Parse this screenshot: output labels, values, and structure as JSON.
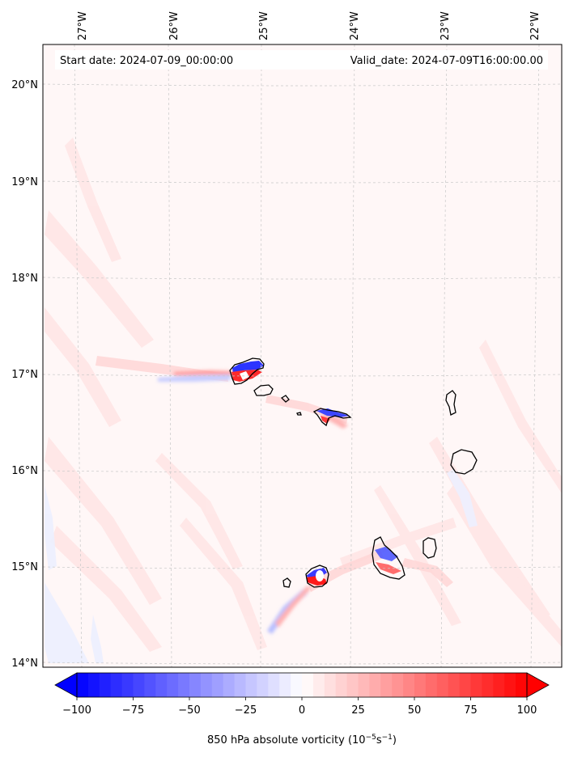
{
  "header": {
    "start_date": "Start date: 2024-07-09_00:00:00",
    "valid_date": "Valid_date: 2024-07-09T16:00:00.00"
  },
  "map": {
    "lon_labels": [
      "27°W",
      "26°W",
      "25°W",
      "24°W",
      "23°W",
      "22°W"
    ],
    "lat_labels": [
      "20°N",
      "19°N",
      "18°N",
      "17°N",
      "16°N",
      "15°N",
      "14°N"
    ],
    "gridlines": "dashed"
  },
  "colorbar": {
    "tick_labels": [
      "−100",
      "−75",
      "−50",
      "−25",
      "0",
      "25",
      "50",
      "75",
      "100"
    ],
    "label_main": "850 hPa absolute vorticity (10",
    "label_exp1": "−5",
    "label_mid": "s",
    "label_exp2": "−1",
    "label_end": ")",
    "min_color": "#0000ff",
    "mid_color": "#ffffff",
    "max_color": "#ff0000"
  }
}
